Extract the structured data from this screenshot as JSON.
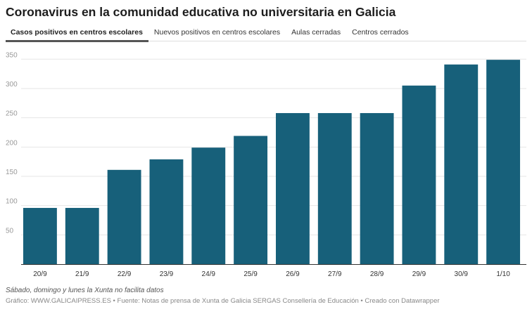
{
  "title": "Coronavirus en la comunidad educativa no universitaria en Galicia",
  "tabs": [
    {
      "label": "Casos positivos en centros escolares",
      "active": true
    },
    {
      "label": "Nuevos positivos en centros escolares",
      "active": false
    },
    {
      "label": "Aulas cerradas",
      "active": false
    },
    {
      "label": "Centros cerrados",
      "active": false
    }
  ],
  "chart_data": {
    "type": "bar",
    "categories": [
      "20/9",
      "21/9",
      "22/9",
      "23/9",
      "24/9",
      "25/9",
      "26/9",
      "27/9",
      "28/9",
      "29/9",
      "30/9",
      "1/10"
    ],
    "values": [
      96,
      96,
      161,
      179,
      199,
      219,
      258,
      258,
      258,
      305,
      341,
      349
    ],
    "ylim": [
      0,
      350
    ],
    "yticks": [
      50,
      100,
      150,
      200,
      250,
      300,
      350
    ],
    "grid": true,
    "bar_color": "#17607a"
  },
  "note": "Sábado, domingo y lunes la Xunta no facilita datos",
  "source": "Gráfico: WWW.GALICAIPRESS.ES • Fuente: Notas de prensa de Xunta de Galicia SERGAS Consellería de Educación • Creado con Datawrapper"
}
